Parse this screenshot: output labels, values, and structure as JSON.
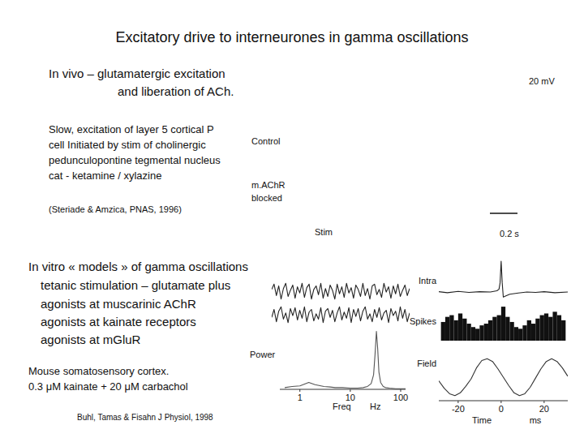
{
  "header": {
    "title": "Excitatory drive to interneurones in gamma oscillations"
  },
  "in_vivo": {
    "heading": [
      "In vivo – glutamatergic excitation",
      "and liberation of ACh."
    ],
    "description": [
      "Slow, excitation of layer 5 cortical P",
      "cell Initiated by stim of cholinergic",
      "pedunculopontine tegmental nucleus",
      "cat - ketamine / xylazine"
    ],
    "citation": "(Steriade & Amzica, PNAS, 1996)",
    "trace_labels": [
      "Control",
      "m.AChR",
      "blocked"
    ],
    "stim_label": "Stim",
    "scale_bar": {
      "voltage": "20 mV",
      "time": "0.2 s"
    }
  },
  "in_vitro": {
    "heading": [
      "In vitro « models » of gamma oscillations",
      "tetanic stimulation – glutamate plus",
      "agonists at muscarinic AChR",
      "agonists at kainate receptors",
      "agonists at mGluR"
    ],
    "preparation": [
      "Mouse somatosensory cortex.",
      "0.3 μM kainate + 20 μM carbachol"
    ],
    "citation": "Buhl, Tamas & Fisahn J Physiol, 1998"
  },
  "chart_data": [
    {
      "type": "line",
      "y_label": "Power",
      "x_label": "Freq",
      "x_unit": "Hz",
      "log": "x",
      "x": [
        0.5,
        0.7,
        1,
        1.5,
        2,
        3,
        4,
        5,
        7,
        10,
        14,
        18,
        22,
        26,
        29,
        31,
        33,
        35,
        37,
        40,
        45,
        50,
        60,
        80,
        100,
        125
      ],
      "values": [
        0.03,
        0.05,
        0.06,
        0.12,
        0.08,
        0.05,
        0.04,
        0.03,
        0.03,
        0.02,
        0.02,
        0.03,
        0.05,
        0.1,
        0.25,
        0.6,
        1.0,
        0.7,
        0.3,
        0.12,
        0.05,
        0.03,
        0.02,
        0.01,
        0.01,
        0.01
      ],
      "xlim": [
        0.4,
        125
      ],
      "xticks": [
        1,
        10,
        100
      ],
      "ylim": [
        0,
        1.05
      ],
      "tick_labels": "x",
      "color": "#555555"
    },
    {
      "type": "line",
      "title": "Intra",
      "x": [
        -29,
        -25,
        -20,
        -15,
        -10,
        -5,
        -2,
        -1,
        -0.5,
        0,
        0.5,
        1,
        2,
        4,
        8,
        12,
        16,
        20,
        25,
        31
      ],
      "values": [
        0.02,
        -0.01,
        0.03,
        0,
        0.02,
        0.01,
        0.05,
        0.1,
        0.3,
        1.0,
        0.3,
        -0.15,
        -0.12,
        -0.06,
        -0.02,
        0.01,
        0,
        0.02,
        -0.01,
        0.01
      ],
      "xlim": [
        -29,
        31
      ],
      "ylim": [
        -0.3,
        1.05
      ],
      "tick_labels": false,
      "color": "#222222"
    },
    {
      "type": "histogram",
      "title": "Spikes",
      "bins": [
        -28,
        -26,
        -24,
        -22,
        -20,
        -18,
        -16,
        -14,
        -12,
        -10,
        -8,
        -6,
        -4,
        -2,
        0,
        2,
        4,
        6,
        8,
        10,
        12,
        14,
        16,
        18,
        20,
        22,
        24,
        26,
        28,
        30
      ],
      "counts": [
        0.55,
        0.7,
        0.75,
        0.6,
        0.8,
        0.65,
        0.5,
        0.4,
        0.35,
        0.45,
        0.5,
        0.6,
        0.7,
        0.75,
        1.0,
        0.7,
        0.55,
        0.4,
        0.35,
        0.45,
        0.6,
        0.5,
        0.65,
        0.75,
        0.8,
        0.7,
        0.85,
        0.75,
        0.6
      ],
      "xlim": [
        -29,
        31
      ],
      "ylim": [
        0,
        1.05
      ],
      "tick_labels": false,
      "color": "#111111"
    },
    {
      "type": "line",
      "title": "Field",
      "x_label": "Time",
      "x_unit": "ms",
      "x": [
        -29,
        -26.5,
        -24,
        -21.5,
        -19,
        -16.5,
        -14,
        -11.5,
        -9,
        -6.5,
        -4,
        -1.5,
        1,
        3.5,
        6,
        8.5,
        11,
        13.5,
        16,
        18.5,
        21,
        23.5,
        26,
        28.5,
        31
      ],
      "values": [
        -0.2,
        -0.6,
        -0.9,
        -1.0,
        -0.85,
        -0.5,
        -0.1,
        0.5,
        0.9,
        1.0,
        0.85,
        0.45,
        0.0,
        -0.45,
        -0.85,
        -1.0,
        -0.9,
        -0.55,
        -0.05,
        0.45,
        0.85,
        1.0,
        0.85,
        0.5,
        0.05
      ],
      "xlim": [
        -29,
        31
      ],
      "xticks": [
        -20,
        0,
        20
      ],
      "ylim": [
        -1.1,
        1.1
      ],
      "tick_labels": "x",
      "color": "#333333"
    },
    {
      "type": "line",
      "values": [
        0.2,
        0.8,
        -0.5,
        0.6,
        -0.9,
        0.3,
        0.9,
        -0.6,
        0.1,
        0.7,
        -0.8,
        0.5,
        -0.2,
        0.9,
        -0.7,
        0.4,
        0.8,
        -0.9,
        0.2,
        0.6,
        -0.4,
        0.9,
        -0.8,
        0.3,
        -0.6,
        0.7,
        0.1,
        -0.9,
        0.8,
        -0.3,
        0.5,
        -0.7,
        0.9,
        -0.2,
        0.4,
        -0.8,
        0.7,
        0.2,
        -0.6,
        0.9,
        -0.5,
        0.3,
        -0.9,
        0.6,
        0.8,
        -0.4,
        0.2,
        -0.7,
        0.9,
        -0.1,
        0.5,
        -0.8,
        0.6,
        -0.3,
        0.8,
        -0.6,
        0.1,
        0.7,
        -0.5,
        0.3
      ],
      "ylim": [
        -1.2,
        1.2
      ],
      "tick_labels": false,
      "color": "#222222"
    },
    {
      "type": "line",
      "values": [
        -0.3,
        0.6,
        -0.8,
        0.4,
        0.9,
        -0.5,
        0.2,
        -0.9,
        0.7,
        -0.1,
        0.8,
        -0.6,
        0.5,
        -0.4,
        0.9,
        -0.8,
        0.3,
        0.6,
        -0.7,
        0.1,
        -0.5,
        0.8,
        -0.9,
        0.4,
        0.7,
        -0.3,
        0.5,
        -0.8,
        0.2,
        0.9,
        -0.6,
        0.3,
        -0.4,
        0.8,
        -0.9,
        0.6,
        -0.2,
        0.7,
        -0.7,
        0.4,
        0.9,
        -0.5,
        0.1,
        -0.8,
        0.6,
        -0.3,
        0.8,
        -0.6,
        0.2,
        0.5,
        -0.9,
        0.7,
        -0.1,
        0.4,
        -0.7,
        0.9,
        -0.4,
        0.6,
        -0.8,
        0.2
      ],
      "ylim": [
        -1.2,
        1.2
      ],
      "tick_labels": false,
      "color": "#222222"
    }
  ]
}
